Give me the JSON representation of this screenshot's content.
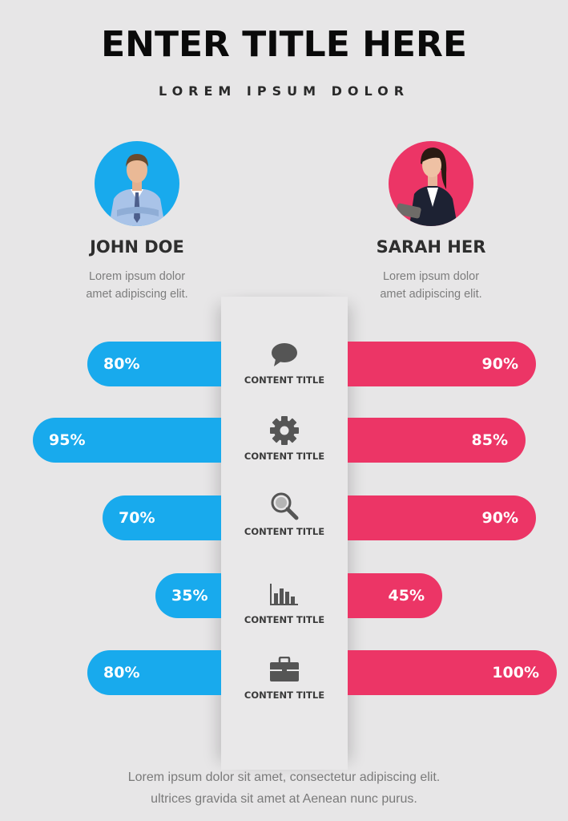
{
  "header": {
    "title": "ENTER TITLE HERE",
    "subtitle": "LOREM IPSUM DOLOR"
  },
  "colors": {
    "left_accent": "#18aaed",
    "right_accent": "#ec3566",
    "icon": "#555555"
  },
  "people": {
    "left": {
      "name": "JOHN DOE",
      "desc_line1": "Lorem ipsum dolor",
      "desc_line2": "amet adipiscing elit."
    },
    "right": {
      "name": "SARAH HER",
      "desc_line1": "Lorem ipsum dolor",
      "desc_line2": "amet adipiscing elit."
    }
  },
  "rows": [
    {
      "icon": "chat-bubble-icon",
      "label": "CONTENT TITLE",
      "left_value": 80,
      "right_value": 90,
      "left_label": "80%",
      "right_label": "90%"
    },
    {
      "icon": "gear-icon",
      "label": "CONTENT TITLE",
      "left_value": 95,
      "right_value": 85,
      "left_label": "95%",
      "right_label": "85%"
    },
    {
      "icon": "magnifier-icon",
      "label": "CONTENT TITLE",
      "left_value": 70,
      "right_value": 90,
      "left_label": "70%",
      "right_label": "90%"
    },
    {
      "icon": "bar-chart-icon",
      "label": "CONTENT TITLE",
      "left_value": 35,
      "right_value": 45,
      "left_label": "35%",
      "right_label": "45%"
    },
    {
      "icon": "briefcase-icon",
      "label": "CONTENT TITLE",
      "left_value": 80,
      "right_value": 100,
      "left_label": "80%",
      "right_label": "100%"
    }
  ],
  "footer": {
    "line1": "Lorem ipsum dolor sit amet, consectetur adipiscing elit.",
    "line2": "ultrices gravida sit amet at Aenean nunc purus."
  }
}
